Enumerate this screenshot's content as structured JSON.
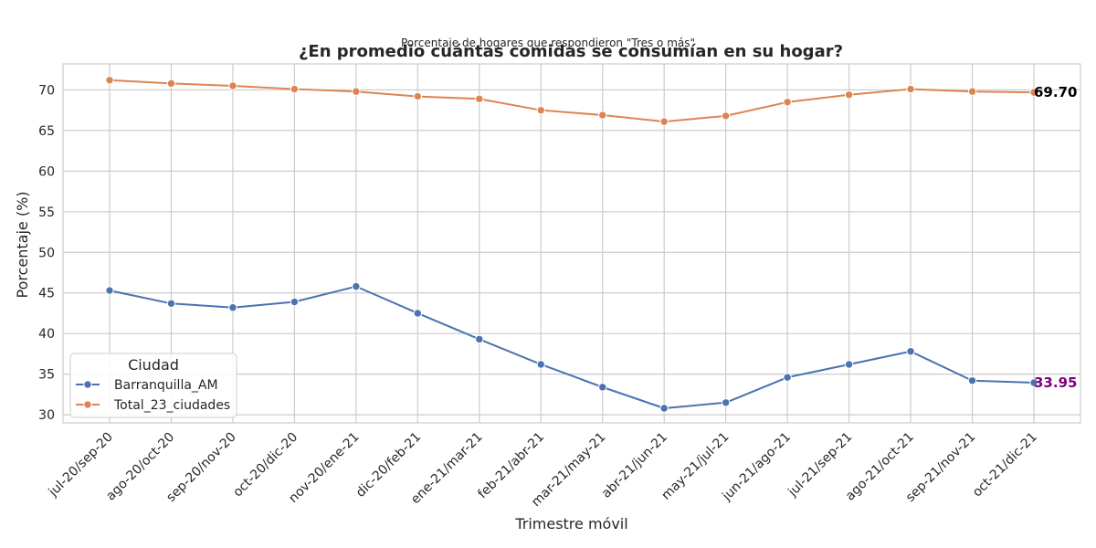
{
  "chart_data": {
    "type": "line",
    "title": "¿En promedio cuántas comidas se consumían en su hogar?",
    "subtitle": "Porcentaje de hogares que respondieron \"Tres o más\"",
    "xlabel": "Trimestre móvil",
    "ylabel": "Porcentaje (%)",
    "ylim": [
      29,
      73.2
    ],
    "yticks": [
      30,
      35,
      40,
      45,
      50,
      55,
      60,
      65,
      70
    ],
    "grid": true,
    "legend": {
      "title": "Ciudad",
      "placement": "lower-left"
    },
    "categories": [
      "jul-20/sep-20",
      "ago-20/oct-20",
      "sep-20/nov-20",
      "oct-20/dic-20",
      "nov-20/ene-21",
      "dic-20/feb-21",
      "ene-21/mar-21",
      "feb-21/abr-21",
      "mar-21/may-21",
      "abr-21/jun-21",
      "may-21/jul-21",
      "jun-21/ago-21",
      "jul-21/sep-21",
      "ago-21/oct-21",
      "sep-21/nov-21",
      "oct-21/dic-21"
    ],
    "series": [
      {
        "name": "Barranquilla_AM",
        "color": "#4c72b0",
        "values": [
          45.3,
          43.7,
          43.2,
          43.9,
          45.8,
          42.5,
          39.3,
          36.2,
          33.4,
          30.8,
          31.5,
          34.6,
          36.2,
          37.8,
          34.2,
          33.95
        ],
        "end_label": "33.95",
        "end_label_color": "#800080"
      },
      {
        "name": "Total_23_ciudades",
        "color": "#dd8452",
        "values": [
          71.2,
          70.8,
          70.5,
          70.1,
          69.8,
          69.2,
          68.9,
          67.5,
          66.9,
          66.1,
          66.8,
          68.5,
          69.4,
          70.1,
          69.8,
          69.7
        ],
        "end_label": "69.70",
        "end_label_color": "#000000"
      }
    ]
  }
}
